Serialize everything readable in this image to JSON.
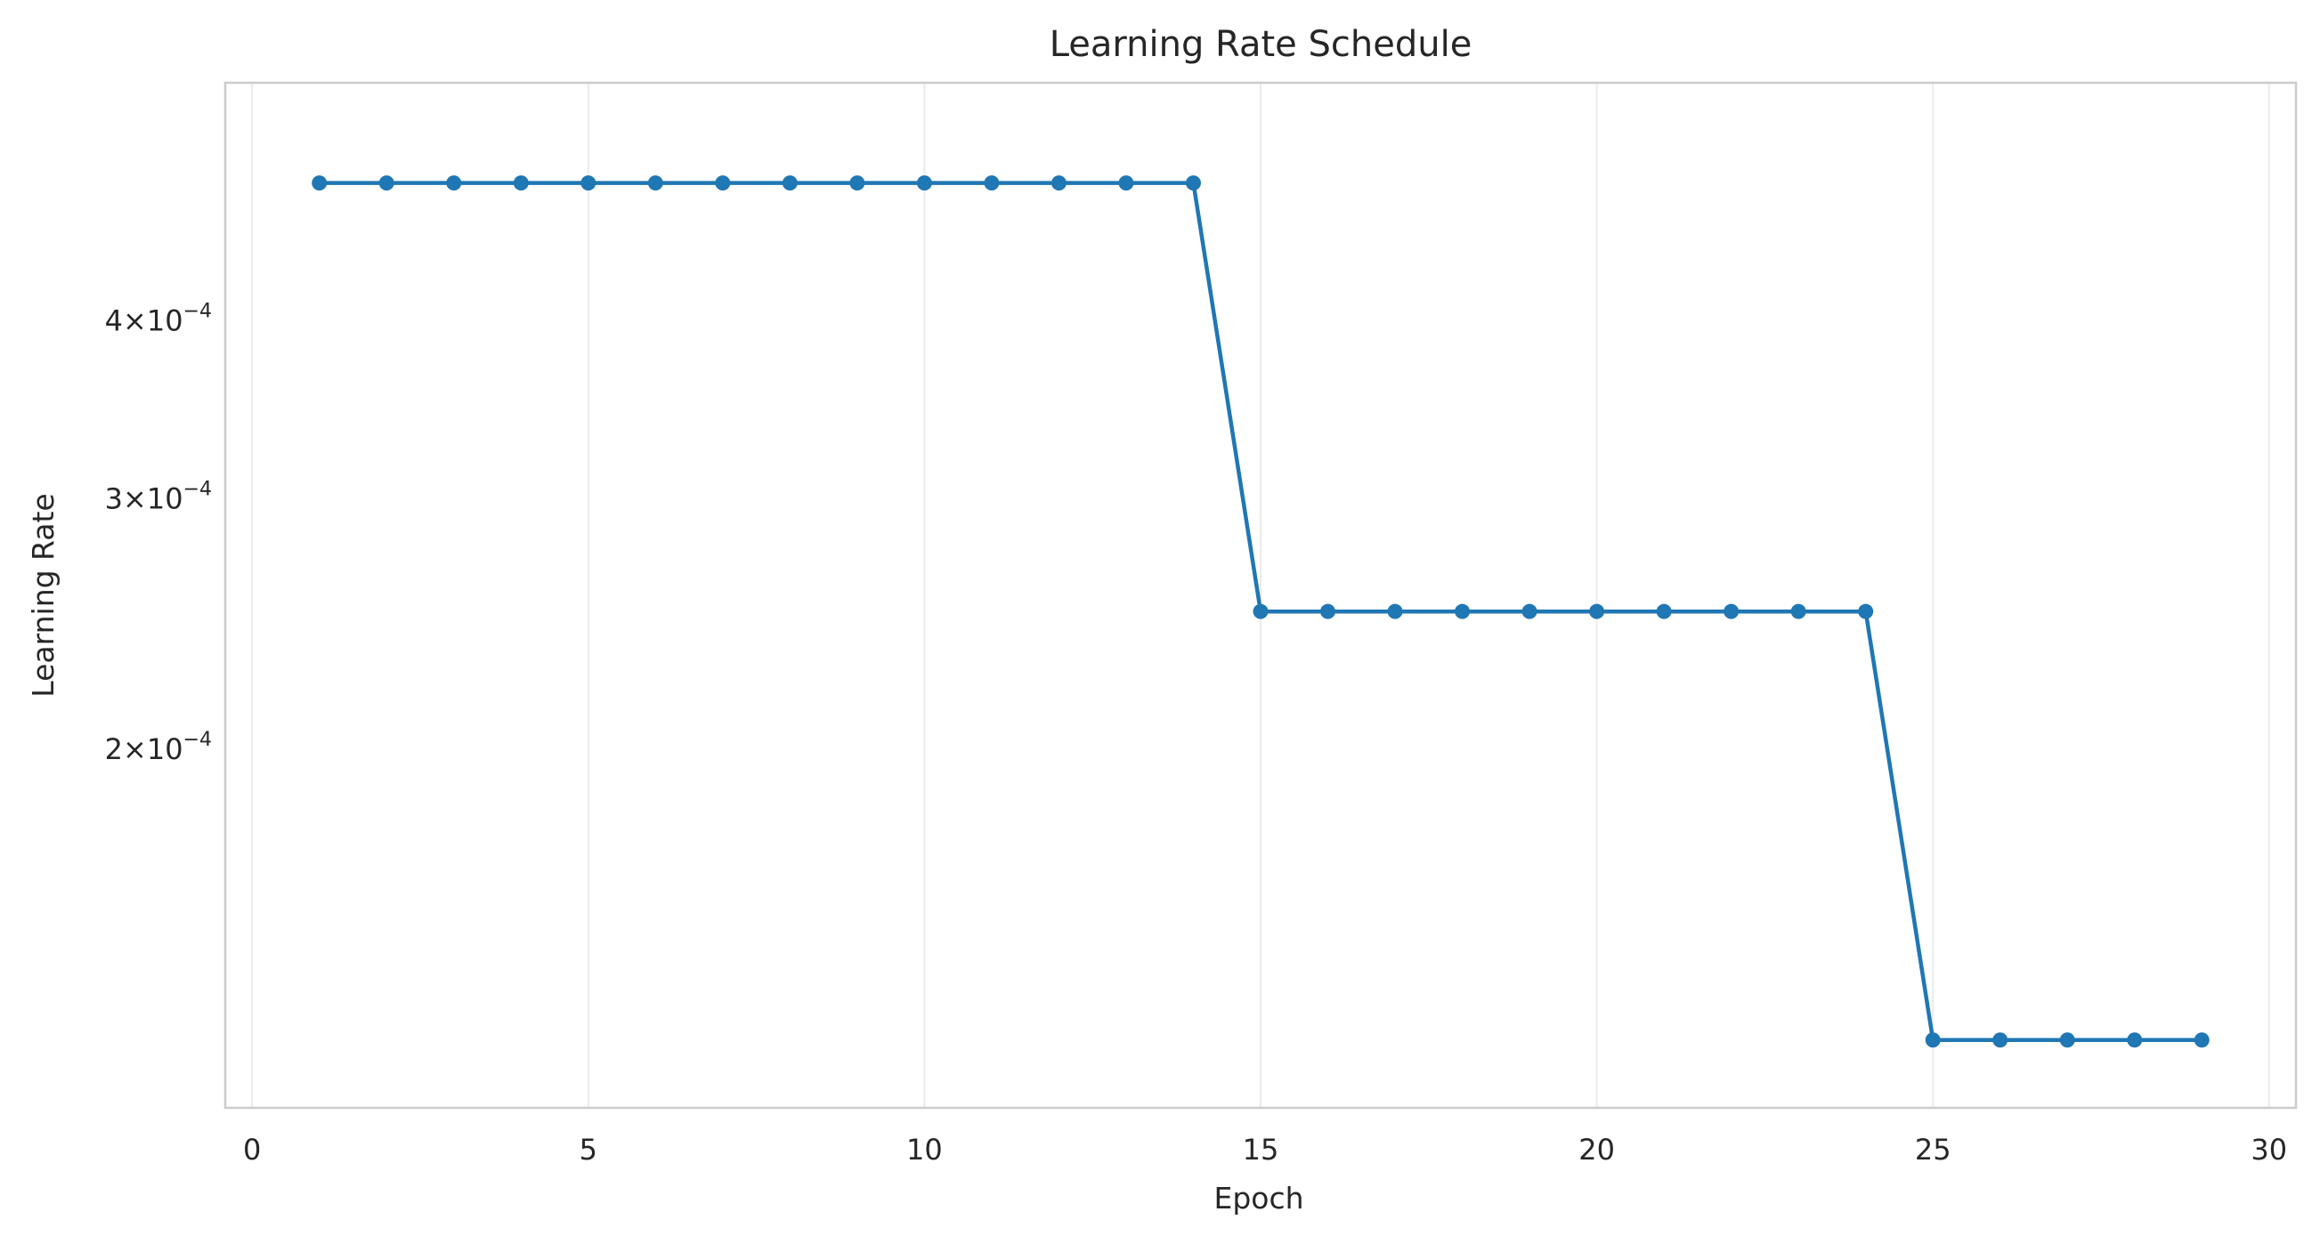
{
  "chart_data": {
    "type": "line",
    "title": "Learning Rate Schedule",
    "xlabel": "Epoch",
    "ylabel": "Learning Rate",
    "xlim": [
      -0.4,
      30.4
    ],
    "ylim": [
      0.000112,
      0.000588
    ],
    "yscale": "log",
    "grid": "x",
    "x_ticks": [
      0,
      5,
      10,
      15,
      20,
      25,
      30
    ],
    "x_tick_labels": [
      "0",
      "5",
      "10",
      "15",
      "20",
      "25",
      "30"
    ],
    "y_ticks": [
      0.0002,
      0.0003,
      0.0004
    ],
    "y_tick_labels": [
      {
        "mantissa": "2",
        "base": "10",
        "exponent": "−4"
      },
      {
        "mantissa": "3",
        "base": "10",
        "exponent": "−4"
      },
      {
        "mantissa": "4",
        "base": "10",
        "exponent": "−4"
      }
    ],
    "color": "#1f77b4",
    "series": [
      {
        "x": [
          1,
          2,
          3,
          4,
          5,
          6,
          7,
          8,
          9,
          10,
          11,
          12,
          13,
          14,
          15,
          16,
          17,
          18,
          19,
          20,
          21,
          22,
          23,
          24,
          25,
          26,
          27,
          28,
          29
        ],
        "values": [
          0.0005,
          0.0005,
          0.0005,
          0.0005,
          0.0005,
          0.0005,
          0.0005,
          0.0005,
          0.0005,
          0.0005,
          0.0005,
          0.0005,
          0.0005,
          0.0005,
          0.00025,
          0.00025,
          0.00025,
          0.00025,
          0.00025,
          0.00025,
          0.00025,
          0.00025,
          0.00025,
          0.00025,
          0.000125,
          0.000125,
          0.000125,
          0.000125,
          0.000125
        ]
      }
    ]
  }
}
